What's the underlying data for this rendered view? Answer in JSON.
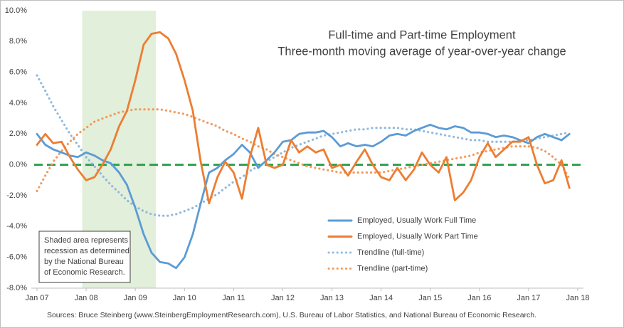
{
  "chart_data": {
    "type": "line",
    "title": [
      "Full-time and Part-time Employment",
      "Three-month moving average of year-over-year change"
    ],
    "source": "Sources: Bruce Steinberg (www.SteinbergEmploymentResearch.com), U.S. Bureau of Labor Statistics, and National Bureau of Economic Research.",
    "annotation": [
      "Shaded area represents",
      "recession as determined",
      "by the National Bureau",
      "of Economic Research."
    ],
    "shade": [
      2007.92,
      2009.42
    ],
    "shade_color": "#e2efda",
    "reference_line": {
      "value": 0,
      "color": "#2ca04c"
    },
    "legend": "lower-center",
    "grid": false,
    "xlim": [
      2007,
      2018
    ],
    "xticks": [
      {
        "value": 2007,
        "label": "Jan 07"
      },
      {
        "value": 2008,
        "label": "Jan 08"
      },
      {
        "value": 2009,
        "label": "Jan 09"
      },
      {
        "value": 2010,
        "label": "Jan 10"
      },
      {
        "value": 2011,
        "label": "Jan 11"
      },
      {
        "value": 2012,
        "label": "Jan 12"
      },
      {
        "value": 2013,
        "label": "Jan 13"
      },
      {
        "value": 2014,
        "label": "Jan 14"
      },
      {
        "value": 2015,
        "label": "Jan 15"
      },
      {
        "value": 2016,
        "label": "Jan 16"
      },
      {
        "value": 2017,
        "label": "Jan 17"
      },
      {
        "value": 2018,
        "label": "Jan 18"
      }
    ],
    "ylim": [
      -8,
      10
    ],
    "yticks": [
      {
        "value": -8,
        "label": "-8.0%"
      },
      {
        "value": -6,
        "label": "-6.0%"
      },
      {
        "value": -4,
        "label": "-4.0%"
      },
      {
        "value": -2,
        "label": "-2.0%"
      },
      {
        "value": 0,
        "label": "0.0%"
      },
      {
        "value": 2,
        "label": "2.0%"
      },
      {
        "value": 4,
        "label": "4.0%"
      },
      {
        "value": 6,
        "label": "6.0%"
      },
      {
        "value": 8,
        "label": "8.0%"
      },
      {
        "value": 10,
        "label": "10.0%"
      }
    ],
    "x": [
      2007,
      2007.17,
      2007.33,
      2007.5,
      2007.67,
      2007.83,
      2008,
      2008.17,
      2008.33,
      2008.5,
      2008.67,
      2008.83,
      2009,
      2009.17,
      2009.33,
      2009.5,
      2009.67,
      2009.83,
      2010,
      2010.17,
      2010.33,
      2010.5,
      2010.67,
      2010.83,
      2011,
      2011.17,
      2011.33,
      2011.5,
      2011.67,
      2011.83,
      2012,
      2012.17,
      2012.33,
      2012.5,
      2012.67,
      2012.83,
      2013,
      2013.17,
      2013.33,
      2013.5,
      2013.67,
      2013.83,
      2014,
      2014.17,
      2014.33,
      2014.5,
      2014.67,
      2014.83,
      2015,
      2015.17,
      2015.33,
      2015.5,
      2015.67,
      2015.83,
      2016,
      2016.17,
      2016.33,
      2016.5,
      2016.67,
      2016.83,
      2017,
      2017.17,
      2017.33,
      2017.5,
      2017.67,
      2017.83
    ],
    "series": [
      {
        "name": "Employed, Usually Work Full Time",
        "color": "#5b9bd5",
        "dash": "solid",
        "values": [
          2.0,
          1.3,
          1.0,
          0.8,
          0.6,
          0.5,
          0.8,
          0.6,
          0.3,
          0.1,
          -0.5,
          -1.3,
          -2.8,
          -4.5,
          -5.7,
          -6.3,
          -6.4,
          -6.7,
          -6.0,
          -4.5,
          -2.5,
          -0.5,
          -0.2,
          0.3,
          0.7,
          1.3,
          0.8,
          -0.2,
          0.3,
          0.8,
          1.5,
          1.6,
          2.0,
          2.1,
          2.1,
          2.2,
          1.8,
          1.2,
          1.4,
          1.2,
          1.3,
          1.2,
          1.5,
          1.9,
          2.0,
          1.9,
          2.2,
          2.4,
          2.6,
          2.4,
          2.3,
          2.5,
          2.4,
          2.1,
          2.1,
          2.0,
          1.8,
          1.9,
          1.8,
          1.6,
          1.4,
          1.8,
          2.0,
          1.8,
          1.6,
          2.0
        ]
      },
      {
        "name": "Employed, Usually Work Part Time",
        "color": "#ed7d31",
        "dash": "solid",
        "values": [
          1.3,
          2.0,
          1.4,
          1.5,
          0.5,
          -0.3,
          -1.0,
          -0.8,
          0.0,
          1.0,
          2.5,
          3.5,
          5.5,
          7.8,
          8.5,
          8.6,
          8.2,
          7.2,
          5.5,
          3.5,
          0.2,
          -2.5,
          -0.8,
          0.2,
          -0.5,
          -2.2,
          0.5,
          2.4,
          0.0,
          -0.2,
          0.0,
          1.6,
          0.8,
          1.2,
          0.8,
          1.0,
          -0.2,
          0.0,
          -0.7,
          0.2,
          1.0,
          0.0,
          -0.8,
          -1.0,
          -0.2,
          -1.0,
          -0.3,
          0.8,
          0.0,
          -0.5,
          0.5,
          -2.3,
          -1.8,
          -1.0,
          0.5,
          1.4,
          0.5,
          1.0,
          1.5,
          1.5,
          1.8,
          0.0,
          -1.2,
          -1.0,
          0.3,
          -1.5
        ]
      },
      {
        "name": "Trendline (full-time)",
        "color": "#8fb8e0",
        "dash": "dotted",
        "values": [
          5.8,
          4.8,
          3.8,
          2.9,
          2.0,
          1.3,
          0.5,
          -0.1,
          -0.7,
          -1.3,
          -1.8,
          -2.3,
          -2.7,
          -3.0,
          -3.2,
          -3.3,
          -3.3,
          -3.2,
          -3.0,
          -2.8,
          -2.5,
          -2.2,
          -1.9,
          -1.5,
          -1.1,
          -0.8,
          -0.4,
          -0.1,
          0.2,
          0.5,
          0.8,
          1.1,
          1.3,
          1.5,
          1.7,
          1.9,
          2.0,
          2.1,
          2.2,
          2.3,
          2.3,
          2.4,
          2.4,
          2.4,
          2.4,
          2.3,
          2.3,
          2.2,
          2.1,
          2.0,
          1.9,
          1.8,
          1.7,
          1.6,
          1.6,
          1.5,
          1.5,
          1.5,
          1.5,
          1.6,
          1.6,
          1.7,
          1.8,
          1.9,
          2.0,
          2.1
        ]
      },
      {
        "name": "Trendline (part-time)",
        "color": "#f19a5c",
        "dash": "dotted",
        "values": [
          -1.7,
          -0.7,
          0.2,
          0.9,
          1.5,
          2.0,
          2.4,
          2.8,
          3.0,
          3.2,
          3.4,
          3.5,
          3.6,
          3.6,
          3.6,
          3.6,
          3.5,
          3.4,
          3.3,
          3.1,
          2.9,
          2.7,
          2.5,
          2.2,
          2.0,
          1.7,
          1.5,
          1.2,
          1.0,
          0.7,
          0.5,
          0.3,
          0.1,
          -0.1,
          -0.2,
          -0.3,
          -0.4,
          -0.5,
          -0.5,
          -0.5,
          -0.5,
          -0.5,
          -0.5,
          -0.4,
          -0.3,
          -0.2,
          -0.1,
          0.0,
          0.1,
          0.2,
          0.3,
          0.4,
          0.5,
          0.6,
          0.8,
          0.9,
          1.0,
          1.1,
          1.2,
          1.2,
          1.2,
          1.1,
          0.9,
          0.5,
          0.0,
          -0.9
        ]
      }
    ]
  }
}
